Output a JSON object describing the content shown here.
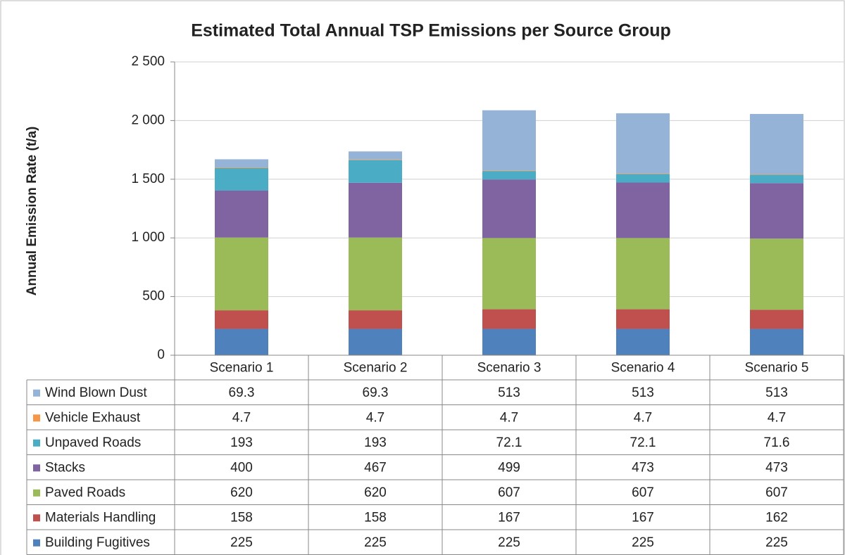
{
  "chart_data": {
    "type": "stacked_bar",
    "title": "Estimated Total Annual TSP Emissions per Source Group",
    "y_label": "Annual Emission Rate (t/a)",
    "categories": [
      "Scenario 1",
      "Scenario 2",
      "Scenario 3",
      "Scenario 4",
      "Scenario 5"
    ],
    "series": [
      {
        "name": "Building Fugitives",
        "color": "#4f81bd",
        "values": [
          225,
          225,
          225,
          225,
          225
        ]
      },
      {
        "name": "Materials Handling",
        "color": "#c0504d",
        "values": [
          158,
          158,
          167,
          167,
          162
        ]
      },
      {
        "name": "Paved Roads",
        "color": "#9bbb59",
        "values": [
          620,
          620,
          607,
          607,
          607
        ]
      },
      {
        "name": "Stacks",
        "color": "#8064a2",
        "values": [
          400,
          467,
          499,
          473,
          473
        ]
      },
      {
        "name": "Unpaved Roads",
        "color": "#4bacc6",
        "values": [
          193,
          193,
          72.1,
          72.1,
          71.6
        ]
      },
      {
        "name": "Vehicle Exhaust",
        "color": "#f79646",
        "values": [
          4.7,
          4.7,
          4.7,
          4.7,
          4.7
        ]
      },
      {
        "name": "Wind Blown Dust",
        "color": "#95b3d7",
        "values": [
          69.3,
          69.3,
          513,
          513,
          513
        ]
      }
    ],
    "ylim": [
      0,
      2500
    ],
    "yticks": [
      0,
      500,
      {
        "value": 1000,
        "label": "1 000"
      },
      {
        "value": 1500,
        "label": "1 500"
      },
      {
        "value": 2000,
        "label": "2 000"
      },
      {
        "value": 2500,
        "label": "2 500"
      }
    ],
    "grid": true
  }
}
